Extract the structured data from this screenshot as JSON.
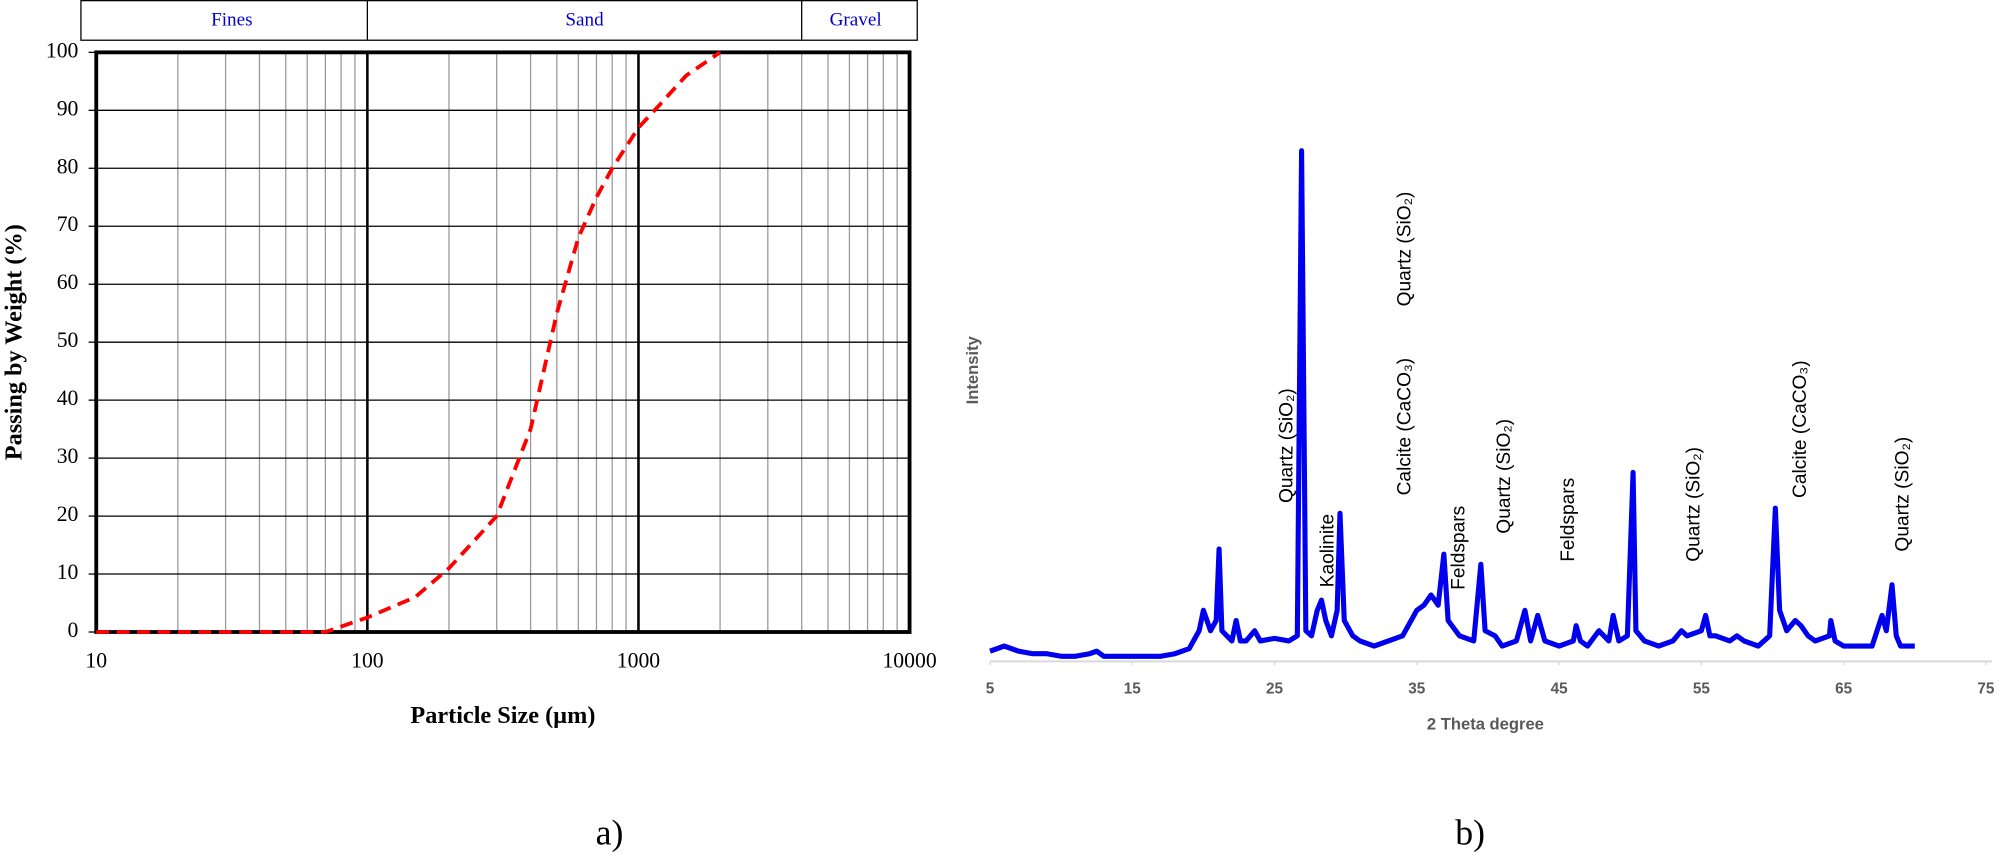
{
  "chart_data": [
    {
      "type": "line",
      "xscale": "log",
      "x_label": "Particle Size (µm)",
      "y_label": "Passing by Weight (%)",
      "panel_label": "a)",
      "xlim": [
        10,
        10000
      ],
      "xticks": [
        10,
        100,
        1000,
        10000
      ],
      "ylim": [
        0,
        100
      ],
      "yticks": [
        0,
        10,
        20,
        30,
        40,
        50,
        60,
        70,
        80,
        90,
        100
      ],
      "grid": true,
      "zones": [
        {
          "name": "Fines",
          "from": 10,
          "to": 100
        },
        {
          "name": "Sand",
          "from": 100,
          "to": 4000
        },
        {
          "name": "Gravel",
          "from": 4000,
          "to": 10000
        }
      ],
      "x": [
        10,
        70,
        100,
        150,
        200,
        300,
        400,
        500,
        600,
        700,
        800,
        1000,
        1200,
        1500,
        2000
      ],
      "series": [
        {
          "color": "#ff0000",
          "line_style": "dashed",
          "values": [
            0,
            0,
            2.5,
            6,
            11,
            20,
            35,
            55,
            68,
            75,
            80,
            87,
            91,
            96,
            100
          ]
        }
      ]
    },
    {
      "type": "line",
      "xscale": "linear",
      "x_label": "2 Theta degree",
      "y_label": "Intensity",
      "panel_label": "b)",
      "xlim": [
        5,
        75
      ],
      "xticks": [
        5,
        15,
        25,
        35,
        45,
        55,
        65,
        75
      ],
      "ylim": [
        0,
        100
      ],
      "grid": false,
      "x": [
        5,
        6,
        7,
        8,
        9,
        10,
        11,
        12,
        12.5,
        13,
        14,
        15,
        16,
        17,
        18,
        19,
        19.7,
        20,
        20.5,
        20.9,
        21.1,
        21.3,
        22,
        22.3,
        22.6,
        23,
        23.6,
        24,
        25,
        26,
        26.6,
        26.9,
        27.2,
        27.6,
        28,
        28.3,
        28.6,
        29,
        29.4,
        29.6,
        29.9,
        30.5,
        31,
        32,
        33,
        34,
        35,
        35.5,
        36,
        36.5,
        36.9,
        37.2,
        38,
        39,
        39.5,
        39.8,
        40.5,
        41,
        42,
        42.6,
        43,
        43.5,
        44,
        45,
        46,
        46.2,
        46.5,
        47,
        47.8,
        48.5,
        48.8,
        49.2,
        49.8,
        50.2,
        50.4,
        51,
        52,
        53,
        53.6,
        54,
        55,
        55.3,
        55.6,
        56,
        57,
        57.5,
        58,
        59,
        59.8,
        60.2,
        60.5,
        61,
        61.6,
        62,
        62.5,
        63,
        64,
        64.1,
        64.4,
        65,
        66,
        67,
        67.7,
        68,
        68.4,
        68.7,
        69,
        70
      ],
      "series": [
        {
          "color": "#0000ee",
          "line_style": "solid",
          "values": [
            2,
            3,
            2,
            1.5,
            1.5,
            1,
            1,
            1.5,
            2,
            1,
            1,
            1,
            1,
            1,
            1.5,
            2.5,
            6,
            10,
            6,
            8,
            22,
            6,
            4,
            8,
            4,
            4,
            6,
            4,
            4.5,
            4,
            5,
            100,
            6,
            5,
            10,
            12,
            8,
            5,
            10,
            29,
            8,
            5,
            4,
            3,
            4,
            5,
            10,
            11,
            13,
            11,
            21,
            8,
            5,
            4,
            19,
            6,
            5,
            3,
            4,
            10,
            4,
            9,
            4,
            3,
            4,
            7,
            4,
            3,
            6,
            4,
            9,
            4,
            5,
            37,
            6,
            4,
            3,
            4,
            6,
            5,
            6,
            9,
            5,
            5,
            4,
            5,
            4,
            3,
            5,
            30,
            10,
            6,
            8,
            7,
            5,
            4,
            5,
            8,
            4,
            3,
            3,
            3,
            9,
            6,
            15,
            5,
            3,
            3
          ]
        }
      ],
      "annotations": [
        {
          "text": "Quartz (SiO₂)",
          "x": 25.9,
          "y": 31
        },
        {
          "text": "Kaolinite",
          "x": 28.8,
          "y": 14.5
        },
        {
          "text": "Calcite (CaCO₃)",
          "x": 34.2,
          "y": 32.5
        },
        {
          "text": "Quartz (SiO₂)",
          "x": 34.2,
          "y": 69.5
        },
        {
          "text": "Feldspars",
          "x": 38.0,
          "y": 14
        },
        {
          "text": "Quartz (SiO₂)",
          "x": 41.2,
          "y": 25
        },
        {
          "text": "Feldspars",
          "x": 45.7,
          "y": 19.5
        },
        {
          "text": "Quartz (SiO₂)",
          "x": 54.5,
          "y": 19.5
        },
        {
          "text": "Calcite (CaCO₃)",
          "x": 62.0,
          "y": 32
        },
        {
          "text": "Quartz (SiO₂)",
          "x": 69.2,
          "y": 21.5
        }
      ]
    }
  ]
}
